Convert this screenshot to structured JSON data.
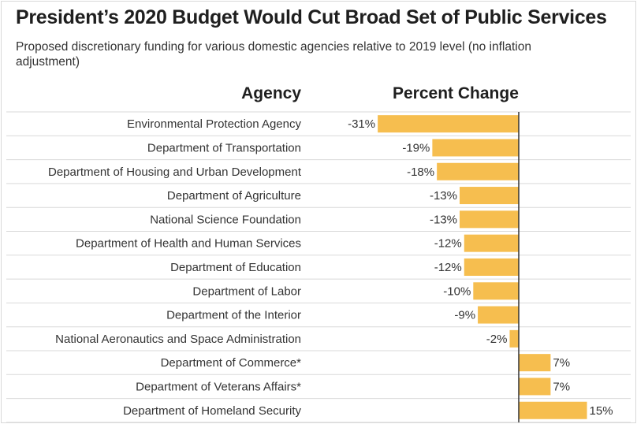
{
  "title": "President’s 2020 Budget Would Cut Broad Set of Public Services",
  "subtitle": "Proposed discretionary funding for various domestic agencies relative to 2019 level (no inflation adjustment)",
  "headers": {
    "agency": "Agency",
    "percent_change": "Percent Change"
  },
  "colors": {
    "bar": "#f6be4f",
    "divider": "#d9d9d9",
    "axis": "#333333"
  },
  "chart_data": {
    "type": "bar",
    "orientation": "horizontal",
    "categories": [
      "Environmental Protection Agency",
      "Department of Transportation",
      "Department of Housing and Urban Development",
      "Department of Agriculture",
      "National Science Foundation",
      "Department of Health and Human Services",
      "Department of Education",
      "Department of Labor",
      "Department of the Interior",
      "National Aeronautics and Space Administration",
      "Department of Commerce*",
      "Department of Veterans Affairs*",
      "Department of Homeland Security"
    ],
    "values": [
      -31,
      -19,
      -18,
      -13,
      -13,
      -12,
      -12,
      -10,
      -9,
      -2,
      7,
      7,
      15
    ],
    "value_labels": [
      "-31%",
      "-19%",
      "-18%",
      "-13%",
      "-13%",
      "-12%",
      "-12%",
      "-10%",
      "-9%",
      "-2%",
      "7%",
      "7%",
      "15%"
    ],
    "unit": "%",
    "xlim": [
      -31,
      15
    ]
  }
}
